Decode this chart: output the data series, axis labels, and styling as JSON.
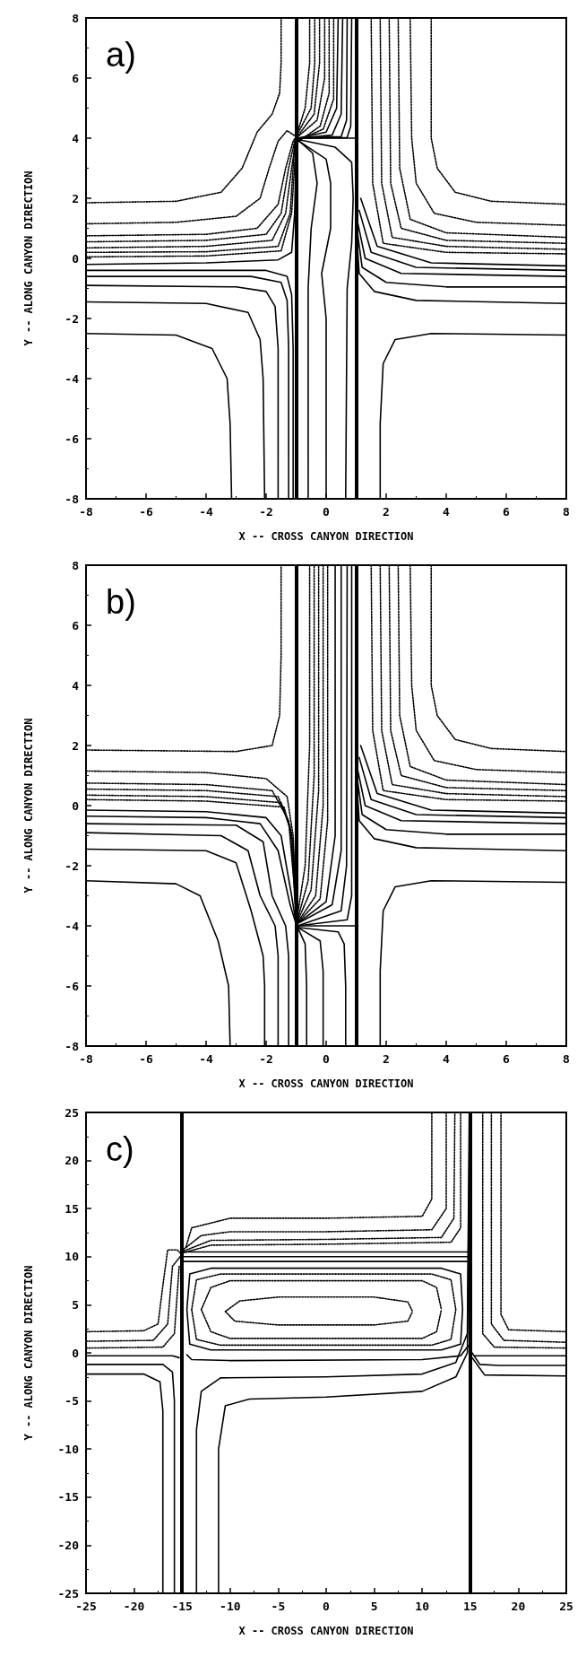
{
  "chart_data": [
    {
      "type": "line",
      "annotations": [
        "a)"
      ],
      "xlabel": "X -- CROSS CANYON DIRECTION",
      "ylabel": "Y -- ALONG CANYON DIRECTION",
      "xlim": [
        -8,
        8
      ],
      "ylim": [
        -8,
        8
      ],
      "xticks": [
        -8,
        -6,
        -4,
        -2,
        0,
        2,
        4,
        6,
        8
      ],
      "yticks": [
        -8,
        -6,
        -4,
        -2,
        0,
        2,
        4,
        6,
        8
      ],
      "ref_lines": [
        {
          "axis": "x",
          "value": -1,
          "color": "#000000"
        },
        {
          "axis": "x",
          "value": 1,
          "color": "#000000"
        }
      ],
      "series": [
        {
          "color": "#000000",
          "line_style": "dotted",
          "x": [
            -8,
            -5,
            -3.5,
            -2.8,
            -2.3,
            -1.8,
            -1.55,
            -1.5,
            -1.5
          ],
          "values": [
            1.85,
            1.9,
            2.2,
            3,
            4.2,
            4.8,
            5.5,
            6.5,
            8
          ]
        },
        {
          "color": "#000000",
          "line_style": "dotted",
          "x": [
            -8,
            -5,
            -3,
            -2.2,
            -1.9,
            -1.6,
            -1.3,
            -1,
            -0.7,
            -0.55,
            -0.55
          ],
          "values": [
            1.15,
            1.2,
            1.4,
            2,
            3,
            3.9,
            4.25,
            4.05,
            5,
            6.5,
            8
          ]
        },
        {
          "color": "#000000",
          "line_style": "dotted",
          "x": [
            -8,
            -4,
            -2.3,
            -1.6,
            -1.35,
            -1.1,
            -1,
            -0.5,
            -0.38,
            -0.38
          ],
          "values": [
            0.75,
            0.8,
            1,
            1.8,
            3,
            3.9,
            4.05,
            5,
            6.5,
            8
          ]
        },
        {
          "color": "#000000",
          "line_style": "dotted",
          "x": [
            -8,
            -4,
            -2,
            -1.5,
            -1.25,
            -1.05,
            -1,
            -0.4,
            -0.22,
            -0.22
          ],
          "values": [
            0.55,
            0.6,
            0.8,
            1.5,
            3,
            3.9,
            4,
            4.8,
            6.5,
            8
          ]
        },
        {
          "color": "#000000",
          "line_style": "dotted",
          "x": [
            -8,
            -4,
            -1.8,
            -1.35,
            -1.15,
            -1,
            -0.3,
            -0.05,
            -0.05
          ],
          "values": [
            0.35,
            0.4,
            0.6,
            1.5,
            3,
            4,
            4.6,
            6,
            8
          ]
        },
        {
          "color": "#000000",
          "line_style": "dotted",
          "x": [
            -8,
            -4,
            -1.6,
            -1.2,
            -1.05,
            -0.2,
            0.1,
            0.1
          ],
          "values": [
            0.2,
            0.22,
            0.4,
            1.5,
            3.8,
            4.4,
            5.5,
            8
          ]
        },
        {
          "color": "#000000",
          "line_style": "dotted",
          "x": [
            -8,
            -4,
            -1.5,
            -1.15,
            -1,
            -0.1,
            0.25,
            0.25
          ],
          "values": [
            0.05,
            0.08,
            0.25,
            1.5,
            3.9,
            4.3,
            5.3,
            8
          ]
        },
        {
          "color": "#000000",
          "line_style": "solid",
          "x": [
            -0.95,
            0,
            0.35,
            0.4
          ],
          "values": [
            4,
            4.2,
            5,
            8
          ]
        },
        {
          "color": "#000000",
          "line_style": "solid",
          "x": [
            -0.95,
            0.2,
            0.5,
            0.55
          ],
          "values": [
            4,
            4.1,
            4.8,
            8
          ]
        },
        {
          "color": "#000000",
          "line_style": "solid",
          "x": [
            -0.95,
            0.5,
            0.68,
            0.7
          ],
          "values": [
            4,
            4.05,
            4.6,
            8
          ]
        },
        {
          "color": "#000000",
          "line_style": "solid",
          "x": [
            -0.95,
            0.7,
            0.82,
            0.85
          ],
          "values": [
            4,
            4.02,
            4.4,
            8
          ]
        },
        {
          "color": "#000000",
          "line_style": "solid",
          "x": [
            -1,
            1
          ],
          "values": [
            4,
            4
          ]
        },
        {
          "color": "#000000",
          "line_style": "solid",
          "x": [
            -8,
            -4,
            -1.6,
            -1.15,
            -1.05,
            -1
          ],
          "values": [
            -0.2,
            -0.15,
            -0.05,
            0.2,
            1.5,
            3.5
          ]
        },
        {
          "color": "#000000",
          "line_style": "solid",
          "x": [
            -8,
            -2,
            -1.3,
            -1.15,
            -1.1,
            -1.1
          ],
          "values": [
            -0.4,
            -0.4,
            -0.6,
            -1.2,
            -3,
            -8
          ]
        },
        {
          "color": "#000000",
          "line_style": "solid",
          "x": [
            -8,
            -2.5,
            -1.5,
            -1.3,
            -1.25,
            -1.25
          ],
          "values": [
            -0.6,
            -0.6,
            -0.8,
            -1.4,
            -3,
            -8
          ]
        },
        {
          "color": "#000000",
          "line_style": "solid",
          "x": [
            -8,
            -3,
            -2,
            -1.7,
            -1.6,
            -1.6
          ],
          "values": [
            -0.9,
            -0.95,
            -1.1,
            -1.6,
            -3,
            -8
          ]
        },
        {
          "color": "#000000",
          "line_style": "solid",
          "x": [
            -8,
            -4,
            -2.6,
            -2.2,
            -2.1,
            -2.05
          ],
          "values": [
            -1.45,
            -1.5,
            -1.8,
            -2.7,
            -4,
            -8
          ]
        },
        {
          "color": "#000000",
          "line_style": "solid",
          "x": [
            -8,
            -5,
            -3.8,
            -3.3,
            -3.2,
            -3.15
          ],
          "values": [
            -2.5,
            -2.55,
            -3,
            -4,
            -5.5,
            -8
          ]
        },
        {
          "color": "#000000",
          "line_style": "solid",
          "x": [
            -0.6,
            -0.6,
            -0.5,
            -0.3,
            -0.45,
            -0.95
          ],
          "values": [
            -8,
            -1,
            1,
            2.5,
            3.5,
            3.95
          ]
        },
        {
          "color": "#000000",
          "line_style": "solid",
          "x": [
            0,
            0,
            -0.15,
            0.15,
            0.15,
            0,
            -0.9
          ],
          "values": [
            -8,
            -2,
            -0.5,
            1,
            2.5,
            3.3,
            3.9
          ]
        },
        {
          "color": "#000000",
          "line_style": "solid",
          "x": [
            0.65,
            0.7,
            0.85,
            0.9,
            0.85,
            0.3,
            -0.9
          ],
          "values": [
            -8,
            -1,
            0.5,
            2,
            3.2,
            3.7,
            3.95
          ]
        },
        {
          "color": "#000000",
          "line_style": "solid",
          "x": [
            1.8,
            1.8,
            1.9,
            2.3,
            3.5,
            8
          ],
          "values": [
            -8,
            -5.5,
            -3.5,
            -2.7,
            -2.5,
            -2.55
          ]
        },
        {
          "color": "#000000",
          "line_style": "solid",
          "x": [
            1.05,
            1.1,
            1.6,
            3,
            8
          ],
          "values": [
            0.3,
            -0.5,
            -1.1,
            -1.4,
            -1.5
          ]
        },
        {
          "color": "#000000",
          "line_style": "solid",
          "x": [
            1.05,
            1.2,
            2,
            4,
            8
          ],
          "values": [
            0.8,
            -0.3,
            -0.8,
            -0.95,
            -0.95
          ]
        },
        {
          "color": "#000000",
          "line_style": "solid",
          "x": [
            1.05,
            1.3,
            2.5,
            8
          ],
          "values": [
            1.2,
            0,
            -0.5,
            -0.6
          ]
        },
        {
          "color": "#000000",
          "line_style": "solid",
          "x": [
            1.1,
            1.5,
            3,
            8
          ],
          "values": [
            1.6,
            0.2,
            -0.3,
            -0.4
          ]
        },
        {
          "color": "#000000",
          "line_style": "solid",
          "x": [
            1.15,
            1.7,
            3.5,
            8
          ],
          "values": [
            2,
            0.4,
            -0.15,
            -0.25
          ]
        },
        {
          "color": "#000000",
          "line_style": "dotted",
          "x": [
            3.5,
            3.5,
            3.7,
            4.3,
            5.5,
            8
          ],
          "values": [
            8,
            4,
            3,
            2.2,
            1.9,
            1.8
          ]
        },
        {
          "color": "#000000",
          "line_style": "dotted",
          "x": [
            2.8,
            2.85,
            3,
            3.6,
            5,
            8
          ],
          "values": [
            8,
            4,
            2.5,
            1.5,
            1.2,
            1.1
          ]
        },
        {
          "color": "#000000",
          "line_style": "dotted",
          "x": [
            2.4,
            2.45,
            2.8,
            4,
            8
          ],
          "values": [
            8,
            3,
            1.3,
            0.85,
            0.7
          ]
        },
        {
          "color": "#000000",
          "line_style": "dotted",
          "x": [
            2.1,
            2.15,
            2.5,
            4,
            8
          ],
          "values": [
            8,
            2.5,
            1,
            0.6,
            0.5
          ]
        },
        {
          "color": "#000000",
          "line_style": "dotted",
          "x": [
            1.8,
            1.85,
            2.2,
            4,
            8
          ],
          "values": [
            8,
            2.5,
            0.7,
            0.4,
            0.3
          ]
        },
        {
          "color": "#000000",
          "line_style": "dotted",
          "x": [
            1.5,
            1.55,
            1.9,
            4,
            8
          ],
          "values": [
            8,
            2.5,
            0.5,
            0.2,
            0.15
          ]
        }
      ]
    },
    {
      "type": "line",
      "annotations": [
        "b)"
      ],
      "xlabel": "X -- CROSS CANYON DIRECTION",
      "ylabel": "Y -- ALONG CANYON DIRECTION",
      "xlim": [
        -8,
        8
      ],
      "ylim": [
        -8,
        8
      ],
      "xticks": [
        -8,
        -6,
        -4,
        -2,
        0,
        2,
        4,
        6,
        8
      ],
      "yticks": [
        -8,
        -6,
        -4,
        -2,
        0,
        2,
        4,
        6,
        8
      ],
      "ref_lines": [
        {
          "axis": "x",
          "value": -1,
          "color": "#000000"
        },
        {
          "axis": "x",
          "value": 1,
          "color": "#000000"
        }
      ],
      "series": [
        {
          "color": "#000000",
          "line_style": "dotted",
          "x": [
            -8,
            -3,
            -1.8,
            -1.55,
            -1.5,
            -1.5
          ],
          "values": [
            1.85,
            1.8,
            2,
            3,
            5,
            8
          ]
        },
        {
          "color": "#000000",
          "line_style": "dotted",
          "x": [
            -8,
            -4,
            -2,
            -1.3,
            -1.1,
            -1.02,
            -1,
            -0.7,
            -0.55,
            -0.55
          ],
          "values": [
            1.15,
            1.1,
            0.9,
            0.3,
            -1,
            -3,
            -3.95,
            -2,
            2,
            8
          ]
        },
        {
          "color": "#000000",
          "line_style": "dotted",
          "x": [
            -8,
            -4,
            -1.8,
            -1.25,
            -1.08,
            -1,
            -0.6,
            -0.4,
            -0.4
          ],
          "values": [
            0.75,
            0.7,
            0.5,
            -0.5,
            -2.5,
            -3.95,
            -2.5,
            1,
            8
          ]
        },
        {
          "color": "#000000",
          "line_style": "dotted",
          "x": [
            -8,
            -4,
            -1.6,
            -1.2,
            -1.05,
            -1,
            -0.5,
            -0.25,
            -0.25
          ],
          "values": [
            0.55,
            0.5,
            0.3,
            -0.7,
            -2.8,
            -3.95,
            -2.8,
            0.5,
            8
          ]
        },
        {
          "color": "#000000",
          "line_style": "dotted",
          "x": [
            -8,
            -4,
            -1.5,
            -1.15,
            -1.03,
            -1,
            -0.35,
            -0.1,
            -0.1
          ],
          "values": [
            0.35,
            0.3,
            0.1,
            -0.9,
            -3,
            -3.95,
            -3,
            0,
            8
          ]
        },
        {
          "color": "#000000",
          "line_style": "dotted",
          "x": [
            -8,
            -4,
            -1.4,
            -1.1,
            -1,
            -0.2,
            0.05,
            0.05
          ],
          "values": [
            0.2,
            0.15,
            -0.05,
            -1.2,
            -3.95,
            -3.1,
            -0.5,
            8
          ]
        },
        {
          "color": "#000000",
          "line_style": "solid",
          "x": [
            -8,
            -4,
            -2,
            -1.5,
            -1.15,
            -1,
            0,
            0.3,
            0.3
          ],
          "values": [
            -0.15,
            -0.2,
            -0.4,
            -1,
            -3,
            -3.95,
            -3.2,
            -1,
            8
          ]
        },
        {
          "color": "#000000",
          "line_style": "solid",
          "x": [
            -8,
            -4,
            -2.2,
            -1.6,
            -1.2,
            -1,
            0.2,
            0.5,
            0.5
          ],
          "values": [
            -0.35,
            -0.4,
            -0.6,
            -1.5,
            -3.3,
            -3.95,
            -3.3,
            -1.5,
            8
          ]
        },
        {
          "color": "#000000",
          "line_style": "solid",
          "x": [
            -0.95,
            0.5,
            0.68,
            0.7
          ],
          "values": [
            -4,
            -3.5,
            -2,
            8
          ]
        },
        {
          "color": "#000000",
          "line_style": "solid",
          "x": [
            -0.95,
            0.7,
            0.85,
            0.85
          ],
          "values": [
            -4,
            -3.8,
            -3,
            8
          ]
        },
        {
          "color": "#000000",
          "line_style": "solid",
          "x": [
            -8,
            -3,
            -2.1,
            -1.8,
            -1.35,
            -1.25,
            -1.25
          ],
          "values": [
            -0.6,
            -0.65,
            -1.2,
            -3,
            -4,
            -5,
            -8
          ]
        },
        {
          "color": "#000000",
          "line_style": "solid",
          "x": [
            -8,
            -3.5,
            -2.6,
            -2.2,
            -1.7,
            -1.6,
            -1.6
          ],
          "values": [
            -0.9,
            -1,
            -1.5,
            -3,
            -4,
            -5,
            -8
          ]
        },
        {
          "color": "#000000",
          "line_style": "solid",
          "x": [
            -8,
            -4,
            -3,
            -2.5,
            -2.1,
            -2.05,
            -2.05
          ],
          "values": [
            -1.45,
            -1.5,
            -1.9,
            -3.5,
            -5,
            -6,
            -8
          ]
        },
        {
          "color": "#000000",
          "line_style": "solid",
          "x": [
            -8,
            -5,
            -4.2,
            -3.6,
            -3.25,
            -3.2
          ],
          "values": [
            -2.5,
            -2.6,
            -3,
            -4.5,
            -6,
            -8
          ]
        },
        {
          "color": "#000000",
          "line_style": "solid",
          "x": [
            -0.95,
            -0.7,
            -0.65,
            -0.65
          ],
          "values": [
            -4.05,
            -4.6,
            -6,
            -8
          ]
        },
        {
          "color": "#000000",
          "line_style": "solid",
          "x": [
            -0.95,
            -0.2,
            -0.1,
            -0.1
          ],
          "values": [
            -4.05,
            -4.5,
            -5.5,
            -8
          ]
        },
        {
          "color": "#000000",
          "line_style": "solid",
          "x": [
            -0.95,
            0.4,
            0.6,
            0.65,
            0.65
          ],
          "values": [
            -4.05,
            -4.2,
            -4.6,
            -6,
            -8
          ]
        },
        {
          "color": "#000000",
          "line_style": "solid",
          "x": [
            -1,
            1
          ],
          "values": [
            -4,
            -4
          ]
        },
        {
          "color": "#000000",
          "line_style": "solid",
          "x": [
            1.8,
            1.8,
            1.9,
            2.3,
            3.5,
            8
          ],
          "values": [
            -8,
            -5.5,
            -3.5,
            -2.7,
            -2.5,
            -2.55
          ]
        },
        {
          "color": "#000000",
          "line_style": "solid",
          "x": [
            1.05,
            1.1,
            1.6,
            3,
            8
          ],
          "values": [
            0.3,
            -0.5,
            -1.1,
            -1.4,
            -1.5
          ]
        },
        {
          "color": "#000000",
          "line_style": "solid",
          "x": [
            1.05,
            1.2,
            2,
            4,
            8
          ],
          "values": [
            0.8,
            -0.3,
            -0.8,
            -0.95,
            -0.95
          ]
        },
        {
          "color": "#000000",
          "line_style": "solid",
          "x": [
            1.05,
            1.3,
            2.5,
            8
          ],
          "values": [
            1.2,
            0,
            -0.5,
            -0.6
          ]
        },
        {
          "color": "#000000",
          "line_style": "solid",
          "x": [
            1.1,
            1.5,
            3,
            8
          ],
          "values": [
            1.6,
            0.2,
            -0.3,
            -0.4
          ]
        },
        {
          "color": "#000000",
          "line_style": "solid",
          "x": [
            1.15,
            1.7,
            3.5,
            8
          ],
          "values": [
            2,
            0.4,
            -0.15,
            -0.25
          ]
        },
        {
          "color": "#000000",
          "line_style": "dotted",
          "x": [
            3.5,
            3.5,
            3.7,
            4.3,
            5.5,
            8
          ],
          "values": [
            8,
            4,
            3,
            2.2,
            1.9,
            1.8
          ]
        },
        {
          "color": "#000000",
          "line_style": "dotted",
          "x": [
            2.8,
            2.85,
            3,
            3.6,
            5,
            8
          ],
          "values": [
            8,
            4,
            2.5,
            1.5,
            1.2,
            1.1
          ]
        },
        {
          "color": "#000000",
          "line_style": "dotted",
          "x": [
            2.4,
            2.45,
            2.8,
            4,
            8
          ],
          "values": [
            8,
            3,
            1.3,
            0.85,
            0.7
          ]
        },
        {
          "color": "#000000",
          "line_style": "dotted",
          "x": [
            2.1,
            2.15,
            2.5,
            4,
            8
          ],
          "values": [
            8,
            2.5,
            1,
            0.6,
            0.5
          ]
        },
        {
          "color": "#000000",
          "line_style": "dotted",
          "x": [
            1.8,
            1.85,
            2.2,
            4,
            8
          ],
          "values": [
            8,
            2.5,
            0.7,
            0.4,
            0.3
          ]
        },
        {
          "color": "#000000",
          "line_style": "dotted",
          "x": [
            1.5,
            1.55,
            1.9,
            4,
            8
          ],
          "values": [
            8,
            2.5,
            0.5,
            0.2,
            0.15
          ]
        }
      ]
    },
    {
      "type": "line",
      "annotations": [
        "c)"
      ],
      "xlabel": "X -- CROSS CANYON DIRECTION",
      "ylabel": "Y -- ALONG CANYON DIRECTION",
      "xlim": [
        -25,
        25
      ],
      "ylim": [
        -25,
        25
      ],
      "xticks": [
        -25,
        -20,
        -15,
        -10,
        -5,
        0,
        5,
        10,
        15,
        20,
        25
      ],
      "yticks": [
        -25,
        -20,
        -15,
        -10,
        -5,
        0,
        5,
        10,
        15,
        20,
        25
      ],
      "ref_lines": [
        {
          "axis": "x",
          "value": -15,
          "color": "#000000"
        },
        {
          "axis": "x",
          "value": 15,
          "color": "#000000"
        }
      ],
      "series": [
        {
          "color": "#000000",
          "line_style": "solid",
          "x": [
            -15,
            15
          ],
          "values": [
            10.5,
            10.5
          ]
        },
        {
          "color": "#000000",
          "line_style": "solid",
          "x": [
            -15,
            15
          ],
          "values": [
            10,
            10
          ]
        },
        {
          "color": "#000000",
          "line_style": "solid",
          "x": [
            -15,
            15
          ],
          "values": [
            9.5,
            9.5
          ]
        },
        {
          "color": "#000000",
          "line_style": "dotted",
          "x": [
            -14.6,
            -14,
            -10,
            0,
            10,
            11,
            11
          ],
          "values": [
            11,
            13,
            14,
            14,
            14.2,
            16,
            25
          ]
        },
        {
          "color": "#000000",
          "line_style": "dotted",
          "x": [
            -14.8,
            -13,
            -10,
            0,
            11,
            12.5,
            12.5
          ],
          "values": [
            10.8,
            12.2,
            12.6,
            12.6,
            12.8,
            15,
            25
          ]
        },
        {
          "color": "#000000",
          "line_style": "dotted",
          "x": [
            -14.8,
            -12,
            0,
            12,
            13.3,
            13.4
          ],
          "values": [
            10.6,
            11.7,
            11.8,
            12,
            14,
            25
          ]
        },
        {
          "color": "#000000",
          "line_style": "dotted",
          "x": [
            -14.9,
            -12,
            0,
            13,
            14,
            14
          ],
          "values": [
            10.4,
            11.2,
            11.3,
            11.5,
            13,
            25
          ]
        },
        {
          "color": "#000000",
          "line_style": "dotted",
          "x": [
            -25,
            -19,
            -17.5,
            -17,
            -16.5,
            -15.5,
            -15
          ],
          "values": [
            2.2,
            2.3,
            3,
            7,
            10.7,
            10.7,
            10.2
          ]
        },
        {
          "color": "#000000",
          "line_style": "dotted",
          "x": [
            -25,
            -18,
            -16.5,
            -16,
            -15.2
          ],
          "values": [
            1.2,
            1.3,
            3,
            9,
            10
          ]
        },
        {
          "color": "#000000",
          "line_style": "dotted",
          "x": [
            -25,
            -17,
            -15.8,
            -15.3
          ],
          "values": [
            0.5,
            0.6,
            2,
            9
          ]
        },
        {
          "color": "#000000",
          "line_style": "dotted",
          "x": [
            18.2,
            18.2,
            19,
            25
          ],
          "values": [
            25,
            4,
            2.4,
            2.2
          ]
        },
        {
          "color": "#000000",
          "line_style": "dotted",
          "x": [
            17.2,
            17.2,
            18.5,
            25
          ],
          "values": [
            25,
            3,
            1.3,
            1.1
          ]
        },
        {
          "color": "#000000",
          "line_style": "dotted",
          "x": [
            16.3,
            16.3,
            17.5,
            25
          ],
          "values": [
            25,
            2,
            0.6,
            0.5
          ]
        },
        {
          "color": "#000000",
          "line_style": "dotted",
          "x": [
            -10.5,
            -9,
            -5,
            5,
            8.5,
            9,
            null,
            -10.5,
            -9.5,
            -5,
            5,
            8.5,
            9
          ],
          "values": [
            4.3,
            5.4,
            5.8,
            5.8,
            5.3,
            4.3,
            null,
            4.3,
            3.3,
            2.9,
            2.9,
            3.3,
            4.3
          ]
        },
        {
          "color": "#000000",
          "line_style": "dotted",
          "x": [
            -13,
            -12,
            -10,
            10,
            11.5,
            12,
            null,
            -13,
            -12,
            -10,
            10,
            11.5,
            12
          ],
          "values": [
            4.5,
            6.8,
            7.5,
            7.5,
            6.8,
            4.5,
            null,
            4.5,
            2.2,
            1.5,
            1.5,
            2.2,
            4.5
          ]
        },
        {
          "color": "#000000",
          "line_style": "dotted",
          "x": [
            -14,
            -13.5,
            -11,
            11,
            13,
            13.5,
            null,
            -14,
            -13.5,
            -11,
            11,
            13,
            13.5
          ],
          "values": [
            4.5,
            7.6,
            8.2,
            8.2,
            7.6,
            4.5,
            null,
            4.5,
            1.4,
            0.8,
            0.8,
            1.4,
            4.5
          ]
        },
        {
          "color": "#000000",
          "line_style": "solid",
          "x": [
            -14.5,
            -14.2,
            -12,
            12,
            14,
            14.2,
            null,
            -14.5,
            -14.2,
            -12,
            12,
            14,
            14.2
          ],
          "values": [
            4.5,
            8.2,
            8.8,
            8.8,
            8.2,
            4.5,
            null,
            4.5,
            0.9,
            0.3,
            0.3,
            0.9,
            4.5
          ]
        },
        {
          "color": "#000000",
          "line_style": "solid",
          "x": [
            -25,
            -16,
            -15.3
          ],
          "values": [
            -0.3,
            -0.3,
            -0.5
          ]
        },
        {
          "color": "#000000",
          "line_style": "solid",
          "x": [
            -25,
            -17,
            -16,
            -15.8,
            -15.8
          ],
          "values": [
            -1.2,
            -1.2,
            -2,
            -5,
            -25
          ]
        },
        {
          "color": "#000000",
          "line_style": "solid",
          "x": [
            -25,
            -19,
            -17.3,
            -17,
            -17
          ],
          "values": [
            -2.2,
            -2.2,
            -3,
            -6,
            -25
          ]
        },
        {
          "color": "#000000",
          "line_style": "solid",
          "x": [
            -14.5,
            -14,
            -10,
            10,
            14,
            15
          ],
          "values": [
            -0.2,
            -0.7,
            -0.8,
            -0.7,
            -0.3,
            1
          ]
        },
        {
          "color": "#000000",
          "line_style": "solid",
          "x": [
            -13.5,
            -13.5,
            -13,
            -11,
            0,
            10,
            13.5,
            14.7,
            14.9
          ],
          "values": [
            -25,
            -8,
            -4,
            -2.6,
            -2.5,
            -2.2,
            -1,
            2,
            25
          ]
        },
        {
          "color": "#000000",
          "line_style": "solid",
          "x": [
            -11.2,
            -11.2,
            -10.5,
            -8,
            0,
            10,
            13.5,
            14.7,
            14.95
          ],
          "values": [
            -25,
            -10,
            -5.5,
            -4.8,
            -4.6,
            -4,
            -2.5,
            0,
            25
          ]
        },
        {
          "color": "#000000",
          "line_style": "solid",
          "x": [
            15.5,
            25
          ],
          "values": [
            -0.3,
            -0.3
          ]
        },
        {
          "color": "#000000",
          "line_style": "solid",
          "x": [
            15.2,
            16,
            18,
            25
          ],
          "values": [
            0,
            -1.2,
            -1.3,
            -1.3
          ]
        },
        {
          "color": "#000000",
          "line_style": "solid",
          "x": [
            15.2,
            16.5,
            25
          ],
          "values": [
            -0.5,
            -2.3,
            -2.4
          ]
        }
      ]
    }
  ]
}
